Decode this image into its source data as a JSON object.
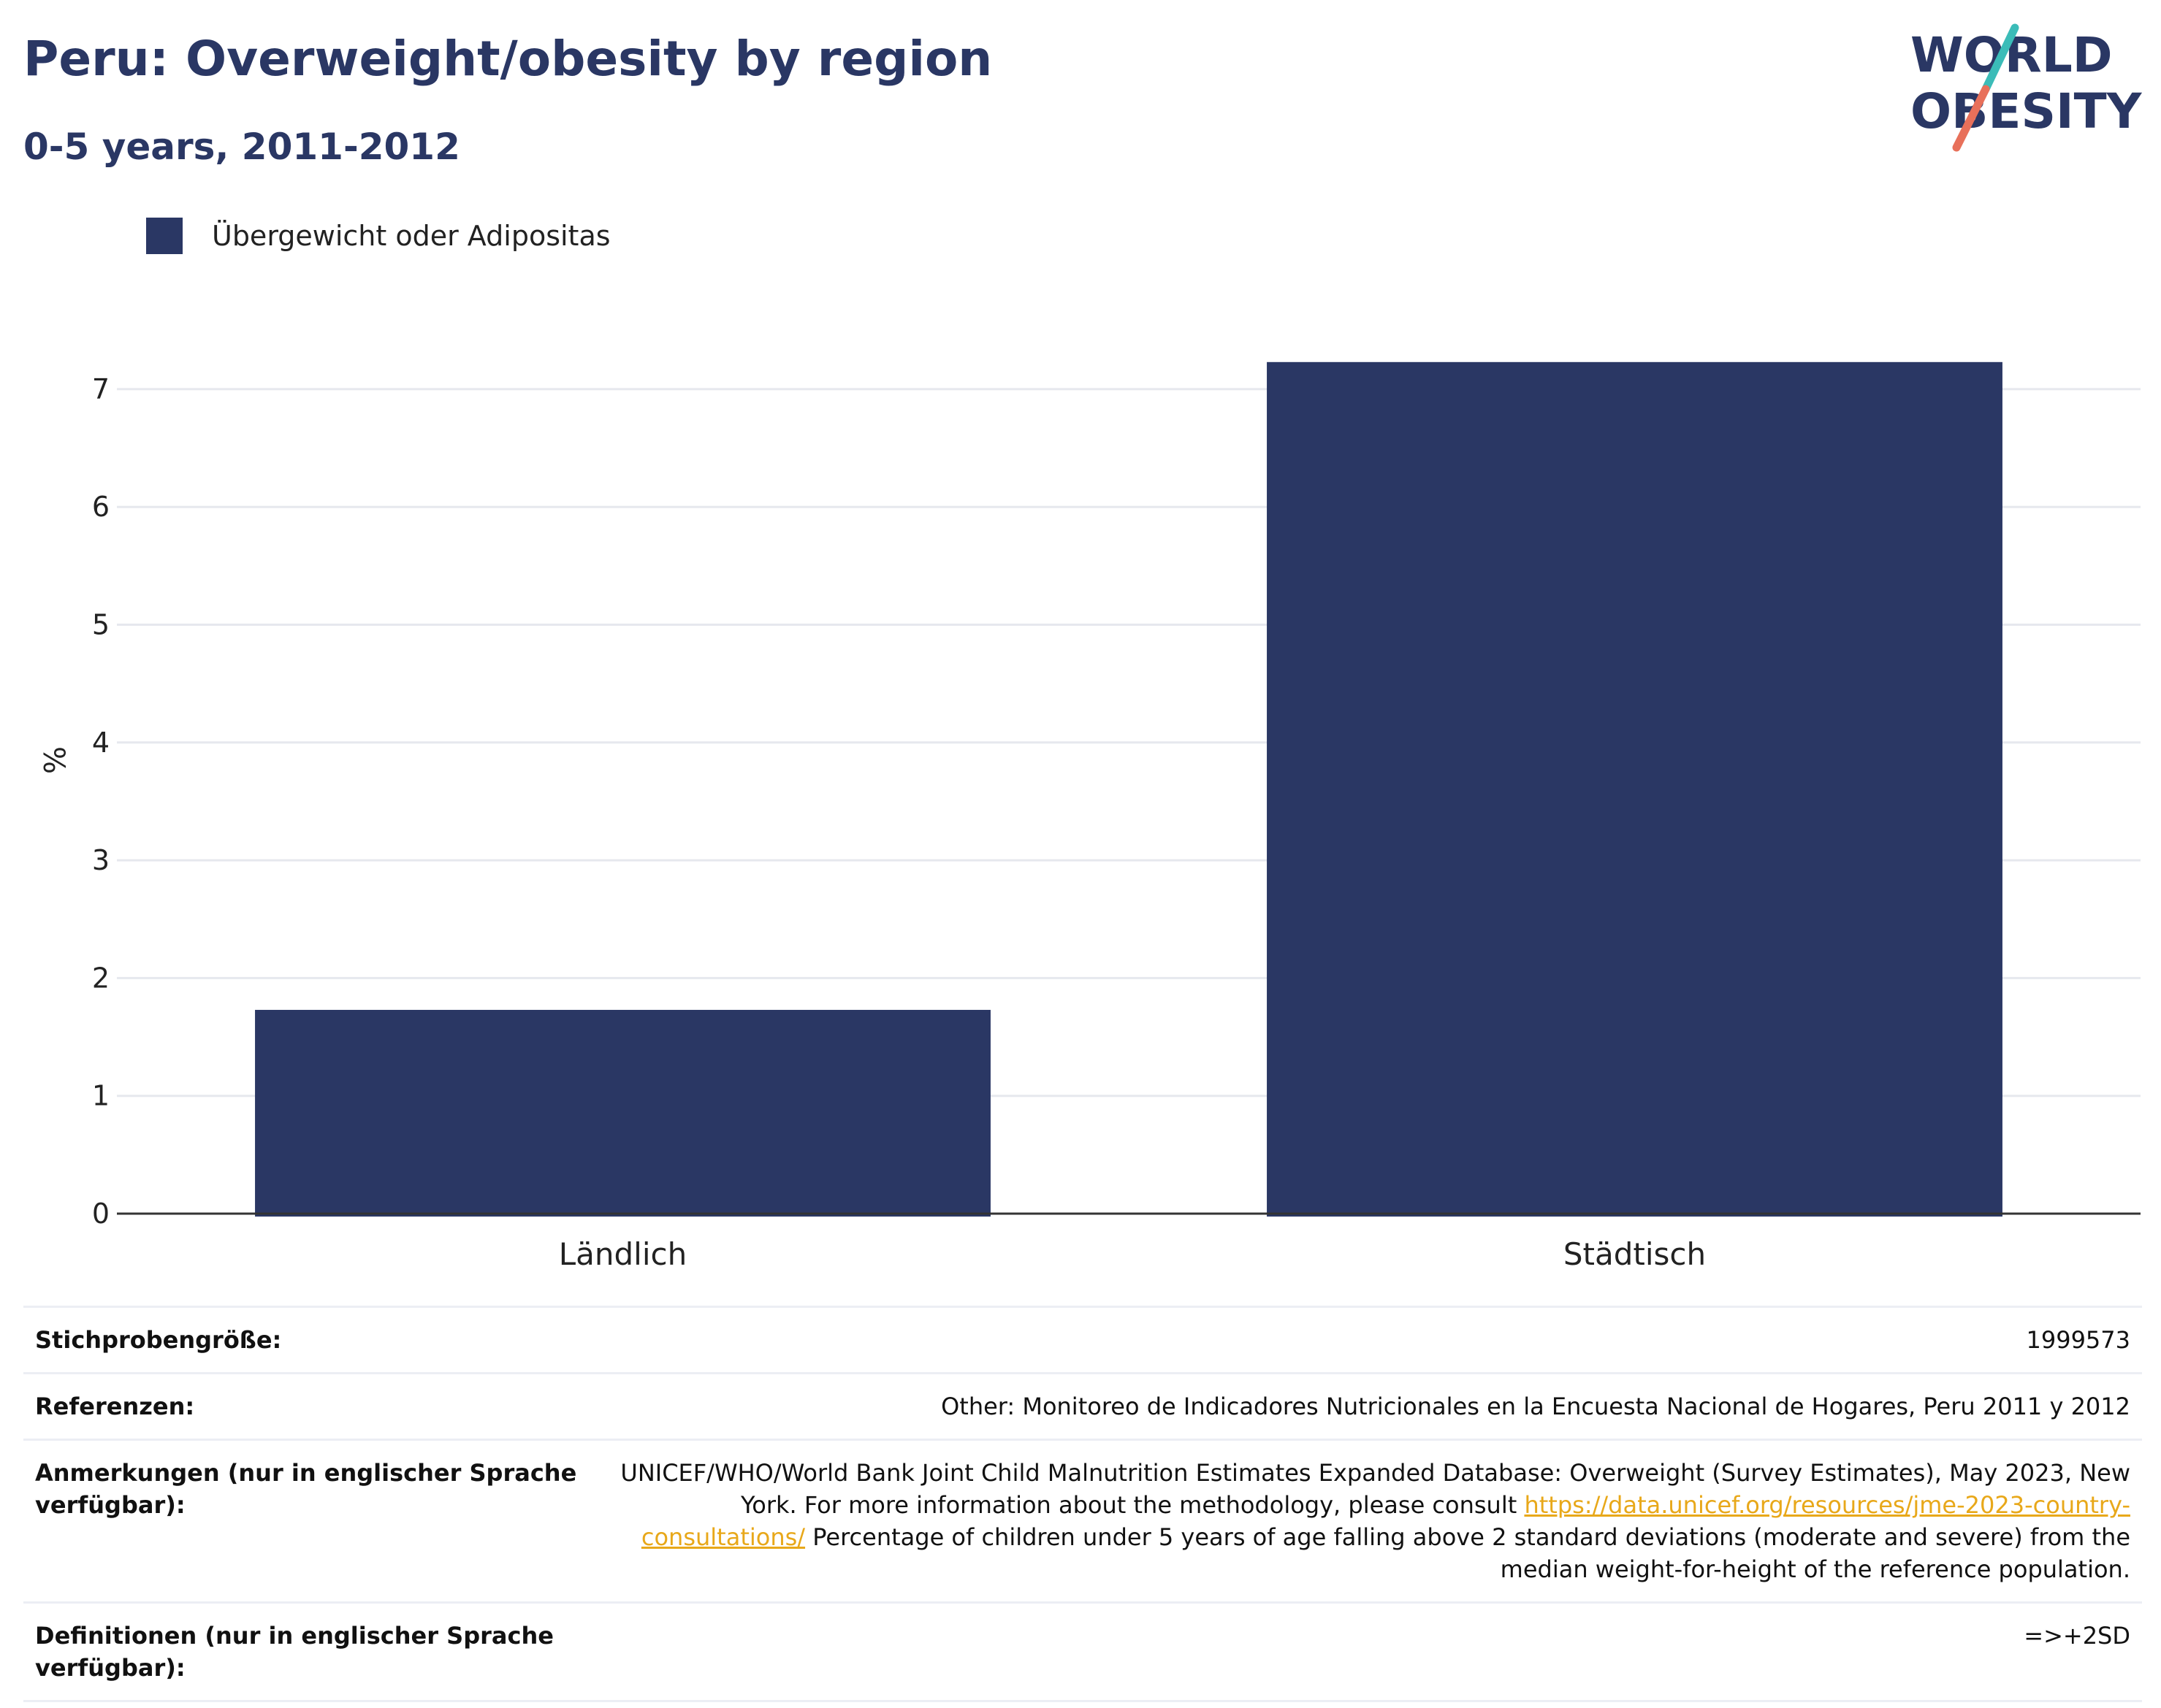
{
  "header": {
    "title": "Peru: Overweight/obesity by region",
    "subtitle": "0-5 years, 2011-2012"
  },
  "logo": {
    "line1": "WORLD",
    "line2": "OBESITY",
    "colors": {
      "text": "#2a3764",
      "slash_top": "#3bbcb8",
      "slash_bottom": "#e8705a"
    }
  },
  "colors": {
    "bar": "#2a3764",
    "grid": "#e6e8ee",
    "axis": "#333333",
    "link": "#e8a81a"
  },
  "chart_data": {
    "type": "bar",
    "categories": [
      "Ländlich",
      "Städtisch"
    ],
    "series": [
      {
        "name": "Übergewicht oder Adipositas",
        "values": [
          1.73,
          7.23
        ]
      }
    ],
    "ylabel": "%",
    "xlabel": "",
    "ylim": [
      0,
      7.7
    ],
    "yticks": [
      "0",
      "1",
      "2",
      "3",
      "4",
      "5",
      "6",
      "7"
    ],
    "grid": true,
    "legend": "top-left"
  },
  "info": {
    "sample_label": "Stichprobengröße:",
    "sample_value": "1999573",
    "refs_label": "Referenzen:",
    "refs_value": "Other: Monitoreo de Indicadores Nutricionales en la Encuesta Nacional de Hogares, Peru 2011 y 2012",
    "notes_label": "Anmerkungen (nur in englischer Sprache verfügbar):",
    "notes_text1": "UNICEF/WHO/World Bank Joint Child Malnutrition Estimates Expanded Database: Overweight (Survey Estimates), May 2023, New York. For more information about the methodology, please consult ",
    "notes_link": "https://data.unicef.org/resources/jme-2023-country-consultations/",
    "notes_text2": " Percentage of children under 5 years of age falling above 2 standard deviations (moderate and severe) from the median weight-for-height of the reference population.",
    "defs_label": "Definitionen (nur in englischer Sprache verfügbar):",
    "defs_value": "=>+2SD"
  }
}
